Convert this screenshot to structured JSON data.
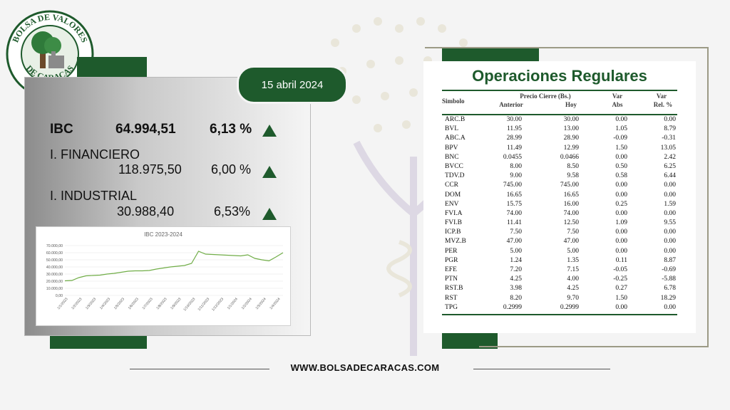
{
  "logo": {
    "top_text": "BOLSA DE VALORES",
    "bottom_text": "DE CARACAS"
  },
  "date": "15 abril 2024",
  "indices": {
    "ibc": {
      "label": "IBC",
      "value": "64.994,51",
      "change": "6,13 %"
    },
    "financiero": {
      "label": "I. FINANCIERO",
      "value": "118.975,50",
      "change": "6,00 %"
    },
    "industrial": {
      "label": "I. INDUSTRIAL",
      "value": "30.988,40",
      "change": "6,53%"
    }
  },
  "colors": {
    "brand_green": "#1e5a2c",
    "line_green": "#70ad47"
  },
  "chart_data": {
    "type": "line",
    "title": "IBC 2023-2024",
    "ylim": [
      0,
      70000
    ],
    "y_ticks": [
      "0,00",
      "10.000,00",
      "20.000,00",
      "30.000,00",
      "40.000,00",
      "50.000,00",
      "60.000,00",
      "70.000,00"
    ],
    "x_ticks": [
      "1/1/2023",
      "1/2/2023",
      "1/3/2023",
      "1/4/2023",
      "1/5/2023",
      "1/6/2023",
      "1/7/2023",
      "1/8/2023",
      "1/9/2023",
      "1/10/2023",
      "1/11/2023",
      "1/12/2023",
      "1/1/2024",
      "1/2/2024",
      "1/3/2024",
      "1/4/2024"
    ],
    "series": [
      {
        "values": [
          20500,
          21000,
          25000,
          27500,
          28000,
          28500,
          30000,
          31000,
          32500,
          34000,
          34500,
          34500,
          35000,
          37000,
          38500,
          40000,
          41000,
          42000,
          45000,
          62000,
          58000,
          57500,
          57000,
          56500,
          56000,
          55500,
          57000,
          52000,
          50000,
          48500,
          54000,
          60000
        ]
      }
    ]
  },
  "operations": {
    "title": "Operaciones Regulares",
    "headers": {
      "simbolo": "Simbolo",
      "precio": "Precio Cierre (Bs.)",
      "anterior": "Anterior",
      "hoy": "Hoy",
      "var1": "Var",
      "abs": "Abs",
      "var2": "Var",
      "rel": "Rel. %"
    },
    "rows": [
      [
        "ARC.B",
        "30.00",
        "30.00",
        "0.00",
        "0.00"
      ],
      [
        "BVL",
        "11.95",
        "13.00",
        "1.05",
        "8.79"
      ],
      [
        "ABC.A",
        "28.99",
        "28.90",
        "-0.09",
        "-0.31"
      ],
      [
        "BPV",
        "11.49",
        "12.99",
        "1.50",
        "13.05"
      ],
      [
        "BNC",
        "0.0455",
        "0.0466",
        "0.00",
        "2.42"
      ],
      [
        "BVCC",
        "8.00",
        "8.50",
        "0.50",
        "6.25"
      ],
      [
        "TDV.D",
        "9.00",
        "9.58",
        "0.58",
        "6.44"
      ],
      [
        "CCR",
        "745.00",
        "745.00",
        "0.00",
        "0.00"
      ],
      [
        "DOM",
        "16.65",
        "16.65",
        "0.00",
        "0.00"
      ],
      [
        "ENV",
        "15.75",
        "16.00",
        "0.25",
        "1.59"
      ],
      [
        "FVI.A",
        "74.00",
        "74.00",
        "0.00",
        "0.00"
      ],
      [
        "FVI.B",
        "11.41",
        "12.50",
        "1.09",
        "9.55"
      ],
      [
        "ICP.B",
        "7.50",
        "7.50",
        "0.00",
        "0.00"
      ],
      [
        "MVZ.B",
        "47.00",
        "47.00",
        "0.00",
        "0.00"
      ],
      [
        "PER",
        "5.00",
        "5.00",
        "0.00",
        "0.00"
      ],
      [
        "PGR",
        "1.24",
        "1.35",
        "0.11",
        "8.87"
      ],
      [
        "EFE",
        "7.20",
        "7.15",
        "-0.05",
        "-0.69"
      ],
      [
        "PTN",
        "4.25",
        "4.00",
        "-0.25",
        "-5.88"
      ],
      [
        "RST.B",
        "3.98",
        "4.25",
        "0.27",
        "6.78"
      ],
      [
        "RST",
        "8.20",
        "9.70",
        "1.50",
        "18.29"
      ],
      [
        "TPG",
        "0.2999",
        "0.2999",
        "0.00",
        "0.00"
      ]
    ]
  },
  "footer": {
    "url": "WWW.BOLSADECARACAS.COM"
  }
}
